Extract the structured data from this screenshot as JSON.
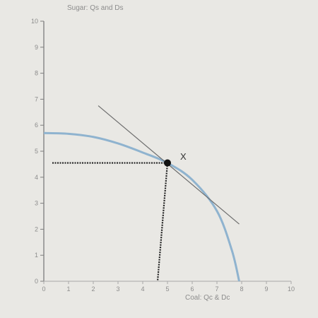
{
  "chart_data": {
    "type": "line",
    "ylabel": "Sugar: Qs and Ds",
    "xlabel": "Coal: Qc & Dc",
    "xlim": [
      0,
      10
    ],
    "ylim": [
      0,
      10
    ],
    "x_ticks": [
      "0",
      "1",
      "2",
      "3",
      "4",
      "5",
      "6",
      "7",
      "8",
      "9",
      "10"
    ],
    "y_ticks": [
      "0",
      "1",
      "2",
      "3",
      "4",
      "5",
      "6",
      "7",
      "8",
      "9",
      "10"
    ],
    "grid": false,
    "series": [
      {
        "kind": "production-possibility-frontier",
        "color": "#8fb3cf",
        "points": [
          [
            0,
            5.7
          ],
          [
            1,
            5.67
          ],
          [
            2,
            5.55
          ],
          [
            3,
            5.3
          ],
          [
            4,
            4.95
          ],
          [
            5,
            4.55
          ],
          [
            6,
            3.9
          ],
          [
            7,
            2.7
          ],
          [
            7.6,
            1.2
          ],
          [
            7.9,
            0
          ]
        ]
      },
      {
        "kind": "tangent-line",
        "color": "#6e6e6e",
        "points": [
          [
            2.2,
            6.75
          ],
          [
            7.9,
            2.2
          ]
        ]
      }
    ],
    "point": {
      "label": "X",
      "x": 5.0,
      "y": 4.55,
      "color": "#111111"
    },
    "guides": {
      "color": "#222222",
      "to_x_axis": true,
      "to_y_axis": true
    }
  }
}
